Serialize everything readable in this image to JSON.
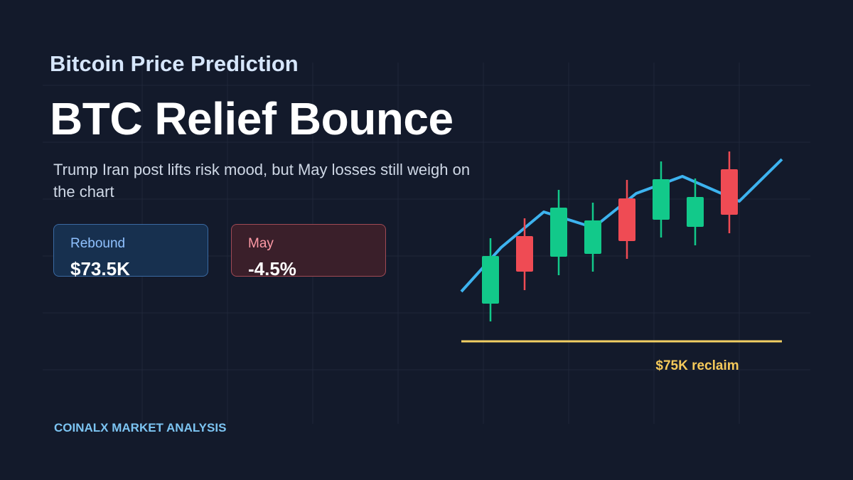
{
  "header": {
    "kicker": "Bitcoin Price Prediction",
    "title": "BTC Relief Bounce",
    "subtitle": "Trump Iran post lifts risk mood, but May losses still weigh on the chart"
  },
  "cards": [
    {
      "label": "Rebound",
      "value": "$73.5K"
    },
    {
      "label": "May",
      "value": "-4.5%"
    }
  ],
  "annotation": "$75K reclaim",
  "footer": "COINALX MARKET ANALYSIS"
}
